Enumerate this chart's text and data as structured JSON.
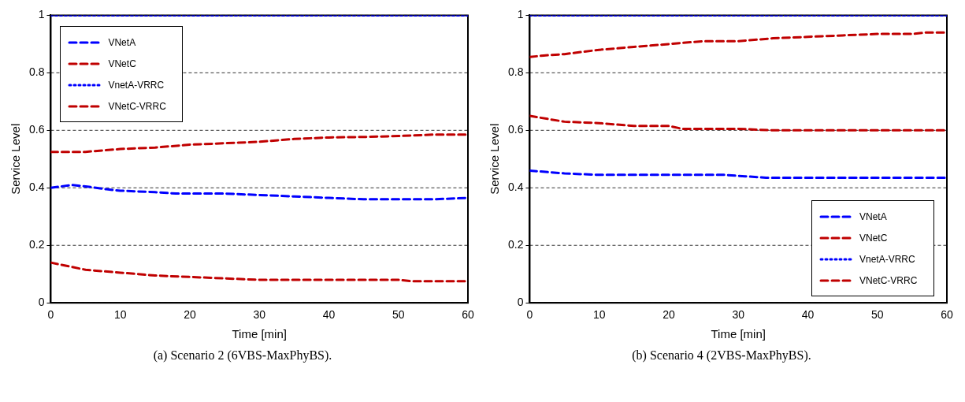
{
  "chart_data": [
    {
      "type": "line",
      "xlabel": "Time [min]",
      "ylabel": "Service Level",
      "xlim": [
        0,
        60
      ],
      "xticks": [
        0,
        10,
        20,
        30,
        40,
        50,
        60
      ],
      "ylim": [
        0,
        1
      ],
      "yticks": [
        0,
        0.2,
        0.4,
        0.6,
        0.8,
        1
      ],
      "grid": "y",
      "legend": "top left",
      "marker": "none",
      "annotations": [
        "(a) Scenario 2 (6VBS-MaxPhyBS)."
      ],
      "series": [
        {
          "name": "VNetA",
          "color": "#0000ff",
          "line_style": "dashed",
          "x": [
            0,
            3,
            5,
            8,
            10,
            15,
            18,
            20,
            25,
            30,
            35,
            40,
            45,
            50,
            55,
            60
          ],
          "values": [
            0.4,
            0.41,
            0.405,
            0.395,
            0.39,
            0.385,
            0.38,
            0.38,
            0.38,
            0.375,
            0.37,
            0.365,
            0.36,
            0.36,
            0.36,
            0.365
          ]
        },
        {
          "name": "VNetC",
          "color": "#c00000",
          "line_style": "dashed",
          "x": [
            0,
            5,
            10,
            15,
            20,
            25,
            30,
            40,
            50,
            52,
            60
          ],
          "values": [
            0.14,
            0.115,
            0.105,
            0.095,
            0.09,
            0.085,
            0.08,
            0.08,
            0.08,
            0.075,
            0.075
          ]
        },
        {
          "name": "VnetA-VRRC",
          "color": "#0000ff",
          "line_style": "dotted",
          "x": [
            0,
            60
          ],
          "values": [
            1,
            1
          ]
        },
        {
          "name": "VNetC-VRRC",
          "color": "#c00000",
          "line_style": "dashed",
          "x": [
            0,
            5,
            10,
            15,
            20,
            25,
            30,
            35,
            40,
            45,
            50,
            55,
            60
          ],
          "values": [
            0.525,
            0.525,
            0.535,
            0.54,
            0.55,
            0.555,
            0.56,
            0.57,
            0.575,
            0.577,
            0.58,
            0.585,
            0.585
          ]
        }
      ]
    },
    {
      "type": "line",
      "xlabel": "Time [min]",
      "ylabel": "Service Level",
      "xlim": [
        0,
        60
      ],
      "xticks": [
        0,
        10,
        20,
        30,
        40,
        50,
        60
      ],
      "ylim": [
        0,
        1
      ],
      "yticks": [
        0,
        0.2,
        0.4,
        0.6,
        0.8,
        1
      ],
      "grid": "y",
      "legend": "bottom right",
      "marker": "none",
      "annotations": [
        "(b) Scenario 4 (2VBS-MaxPhyBS)."
      ],
      "series": [
        {
          "name": "VNetA",
          "color": "#0000ff",
          "line_style": "dashed",
          "x": [
            0,
            5,
            10,
            15,
            20,
            28,
            31,
            34,
            60
          ],
          "values": [
            0.46,
            0.45,
            0.445,
            0.445,
            0.445,
            0.445,
            0.44,
            0.435,
            0.435
          ]
        },
        {
          "name": "VNetC",
          "color": "#c00000",
          "line_style": "dashed",
          "x": [
            0,
            5,
            10,
            15,
            20,
            22,
            30,
            35,
            60
          ],
          "values": [
            0.65,
            0.63,
            0.625,
            0.615,
            0.615,
            0.605,
            0.605,
            0.6,
            0.6
          ]
        },
        {
          "name": "VnetA-VRRC",
          "color": "#0000ff",
          "line_style": "dotted",
          "x": [
            0,
            60
          ],
          "values": [
            1,
            1
          ]
        },
        {
          "name": "VNetC-VRRC",
          "color": "#c00000",
          "line_style": "dashed",
          "x": [
            0,
            2,
            5,
            10,
            15,
            20,
            25,
            30,
            35,
            40,
            45,
            50,
            55,
            57,
            60
          ],
          "values": [
            0.855,
            0.86,
            0.865,
            0.88,
            0.89,
            0.9,
            0.91,
            0.91,
            0.92,
            0.925,
            0.93,
            0.935,
            0.935,
            0.94,
            0.94
          ]
        }
      ]
    }
  ]
}
